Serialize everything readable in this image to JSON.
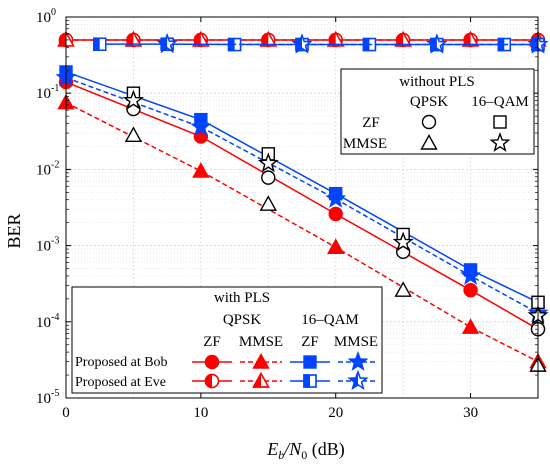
{
  "chart_data": {
    "type": "line",
    "xlabel_main": "E",
    "xlabel_sub": "b",
    "xlabel_mid": "/N",
    "xlabel_sub2": "0",
    "xlabel_unit": " (dB)",
    "ylabel": "BER",
    "xlim": [
      0,
      35
    ],
    "ylim_log10": [
      -5,
      0
    ],
    "y_scale": "log",
    "grid": true,
    "x_ticks": [
      0,
      10,
      20,
      30
    ],
    "x_tick_labels": [
      "0",
      "10",
      "20",
      "30"
    ],
    "y_ticks_exp": [
      -5,
      -4,
      -3,
      -2,
      -1,
      0
    ],
    "y_tick_base": "10",
    "y_tick_exps": [
      "-5",
      "-4",
      "-3",
      "-2",
      "-1",
      "0"
    ],
    "series": [
      {
        "name": "Proposed at Bob ZF QPSK",
        "color": "#ff0000",
        "marker": "circle",
        "style": "solid",
        "group": "bob",
        "x": [
          0,
          10,
          20,
          30,
          35
        ],
        "y": [
          0.14,
          0.027,
          0.0026,
          0.00026,
          8e-05
        ],
        "markerFill": "#ff0000"
      },
      {
        "name": "Proposed at Bob MMSE QPSK",
        "color": "#ff0000",
        "marker": "triangle",
        "style": "dashed",
        "group": "bob",
        "x": [
          0,
          10,
          20,
          30,
          35
        ],
        "y": [
          0.075,
          0.0095,
          0.00095,
          8.5e-05,
          3e-05
        ],
        "markerFill": "#ff0000"
      },
      {
        "name": "Proposed at Bob ZF 16-QAM",
        "color": "#0044ff",
        "marker": "square",
        "style": "solid",
        "group": "bob",
        "x": [
          0,
          10,
          20,
          30,
          35
        ],
        "y": [
          0.19,
          0.045,
          0.0048,
          0.00048,
          0.00018
        ],
        "markerFill": "#0044ff"
      },
      {
        "name": "Proposed at Bob MMSE 16-QAM",
        "color": "#0044ff",
        "marker": "star",
        "style": "dashed",
        "group": "bob",
        "x": [
          0,
          10,
          20,
          30,
          35
        ],
        "y": [
          0.16,
          0.036,
          0.0041,
          0.0004,
          0.00013
        ],
        "markerFill": "#0044ff"
      },
      {
        "name": "Proposed at Eve ZF QPSK",
        "color": "#ff0000",
        "marker": "circle-half",
        "style": "solid",
        "group": "eve",
        "x": [
          0,
          5,
          10,
          15,
          20,
          25,
          30,
          35
        ],
        "y": [
          0.5,
          0.5,
          0.5,
          0.5,
          0.5,
          0.5,
          0.5,
          0.5
        ]
      },
      {
        "name": "Proposed at Eve MMSE QPSK",
        "color": "#ff0000",
        "marker": "triangle-half",
        "style": "dashed",
        "group": "eve",
        "x": [
          0,
          5,
          10,
          15,
          20,
          25,
          30,
          35
        ],
        "y": [
          0.5,
          0.5,
          0.5,
          0.5,
          0.5,
          0.5,
          0.5,
          0.5
        ]
      },
      {
        "name": "Proposed at Eve ZF 16-QAM",
        "color": "#0044ff",
        "marker": "square-half",
        "style": "solid",
        "group": "eve",
        "x": [
          2.5,
          7.5,
          12.5,
          17.5,
          22.5,
          27.5,
          32.5,
          35
        ],
        "y": [
          0.44,
          0.44,
          0.435,
          0.435,
          0.435,
          0.435,
          0.435,
          0.435
        ]
      },
      {
        "name": "Proposed at Eve MMSE 16-QAM",
        "color": "#0044ff",
        "marker": "star-half",
        "style": "dashed",
        "group": "eve",
        "x": [
          7.5,
          17.5,
          27.5,
          35
        ],
        "y": [
          0.44,
          0.435,
          0.435,
          0.435
        ]
      },
      {
        "name": "without PLS ZF QPSK",
        "color": "#000000",
        "marker": "circle",
        "style": "none",
        "x": [
          5,
          15,
          25,
          35
        ],
        "y": [
          0.062,
          0.0078,
          0.00083,
          8e-05
        ],
        "markerFill": "none"
      },
      {
        "name": "without PLS MMSE QPSK",
        "color": "#000000",
        "marker": "triangle",
        "style": "none",
        "x": [
          5,
          15,
          25,
          35
        ],
        "y": [
          0.028,
          0.0035,
          0.00026,
          2.7e-05
        ],
        "markerFill": "none"
      },
      {
        "name": "without PLS ZF 16-QAM",
        "color": "#000000",
        "marker": "square",
        "style": "none",
        "x": [
          5,
          15,
          25,
          35
        ],
        "y": [
          0.1,
          0.016,
          0.0014,
          0.00018
        ],
        "markerFill": "none"
      },
      {
        "name": "without PLS MMSE 16-QAM",
        "color": "#000000",
        "marker": "star",
        "style": "none",
        "x": [
          5,
          15,
          25,
          35
        ],
        "y": [
          0.08,
          0.012,
          0.0011,
          0.00012
        ],
        "markerFill": "none"
      }
    ],
    "legend_top": {
      "title": "without PLS",
      "col_qpsk": "QPSK",
      "col_qam": "16–QAM",
      "row_zf": "ZF",
      "row_mmse": "MMSE"
    },
    "legend_bottom": {
      "title": "with PLS",
      "col_qpsk": "QPSK",
      "col_qam": "16–QAM",
      "sub_zf": "ZF",
      "sub_mmse": "MMSE",
      "row_bob": "Proposed at Bob",
      "row_eve": "Proposed at Eve"
    }
  }
}
